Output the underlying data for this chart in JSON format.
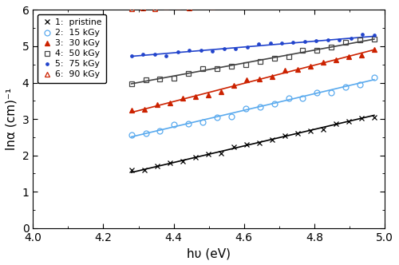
{
  "title": "",
  "xlabel": "hυ (eV)",
  "ylabel": "lnα (cm)⁻¹",
  "xlim": [
    4.0,
    5.0
  ],
  "ylim": [
    0,
    6
  ],
  "xticks": [
    4.0,
    4.2,
    4.4,
    4.6,
    4.8,
    5.0
  ],
  "yticks": [
    0,
    1,
    2,
    3,
    4,
    5,
    6
  ],
  "series": [
    {
      "label": "1:  pristine",
      "color": "black",
      "marker": "x",
      "markersize": 4,
      "markerfacecolor": "black",
      "markeredgecolor": "black",
      "fillstyle": "full",
      "slope": 2.28,
      "intercept": -8.23,
      "x_start": 4.28,
      "x_end": 4.97,
      "npts": 20
    },
    {
      "label": "2:  15 kGy",
      "color": "#5aaaee",
      "marker": "o",
      "markersize": 5,
      "markerfacecolor": "none",
      "markeredgecolor": "#5aaaee",
      "fillstyle": "none",
      "slope": 2.28,
      "intercept": -7.25,
      "x_start": 4.28,
      "x_end": 4.97,
      "npts": 18
    },
    {
      "label": "3:  30 kGy",
      "color": "#cc2200",
      "marker": "^",
      "markersize": 4,
      "markerfacecolor": "#cc2200",
      "markeredgecolor": "#cc2200",
      "fillstyle": "full",
      "slope": 2.5,
      "intercept": -7.52,
      "x_start": 4.28,
      "x_end": 4.97,
      "npts": 20
    },
    {
      "label": "4:  50 kGy",
      "color": "#444444",
      "marker": "s",
      "markersize": 5,
      "markerfacecolor": "none",
      "markeredgecolor": "#444444",
      "fillstyle": "none",
      "slope": 1.78,
      "intercept": -3.65,
      "x_start": 4.28,
      "x_end": 4.97,
      "npts": 18
    },
    {
      "label": "5:  75 kGy",
      "color": "#2244cc",
      "marker": ".",
      "markersize": 5,
      "markerfacecolor": "#2244cc",
      "markeredgecolor": "#2244cc",
      "fillstyle": "full",
      "slope": 0.8,
      "intercept": 1.3,
      "x_start": 4.28,
      "x_end": 4.97,
      "npts": 22
    },
    {
      "label": "6:  90 kGy",
      "color": "#cc2200",
      "marker": "^",
      "markersize": 5,
      "markerfacecolor": "none",
      "markeredgecolor": "#cc2200",
      "fillstyle": "none",
      "slope": 0.32,
      "intercept": 4.68,
      "x_start": 4.28,
      "x_end": 4.97,
      "npts": 22
    }
  ],
  "figsize": [
    5.0,
    3.32
  ],
  "dpi": 100,
  "background_color": "white"
}
